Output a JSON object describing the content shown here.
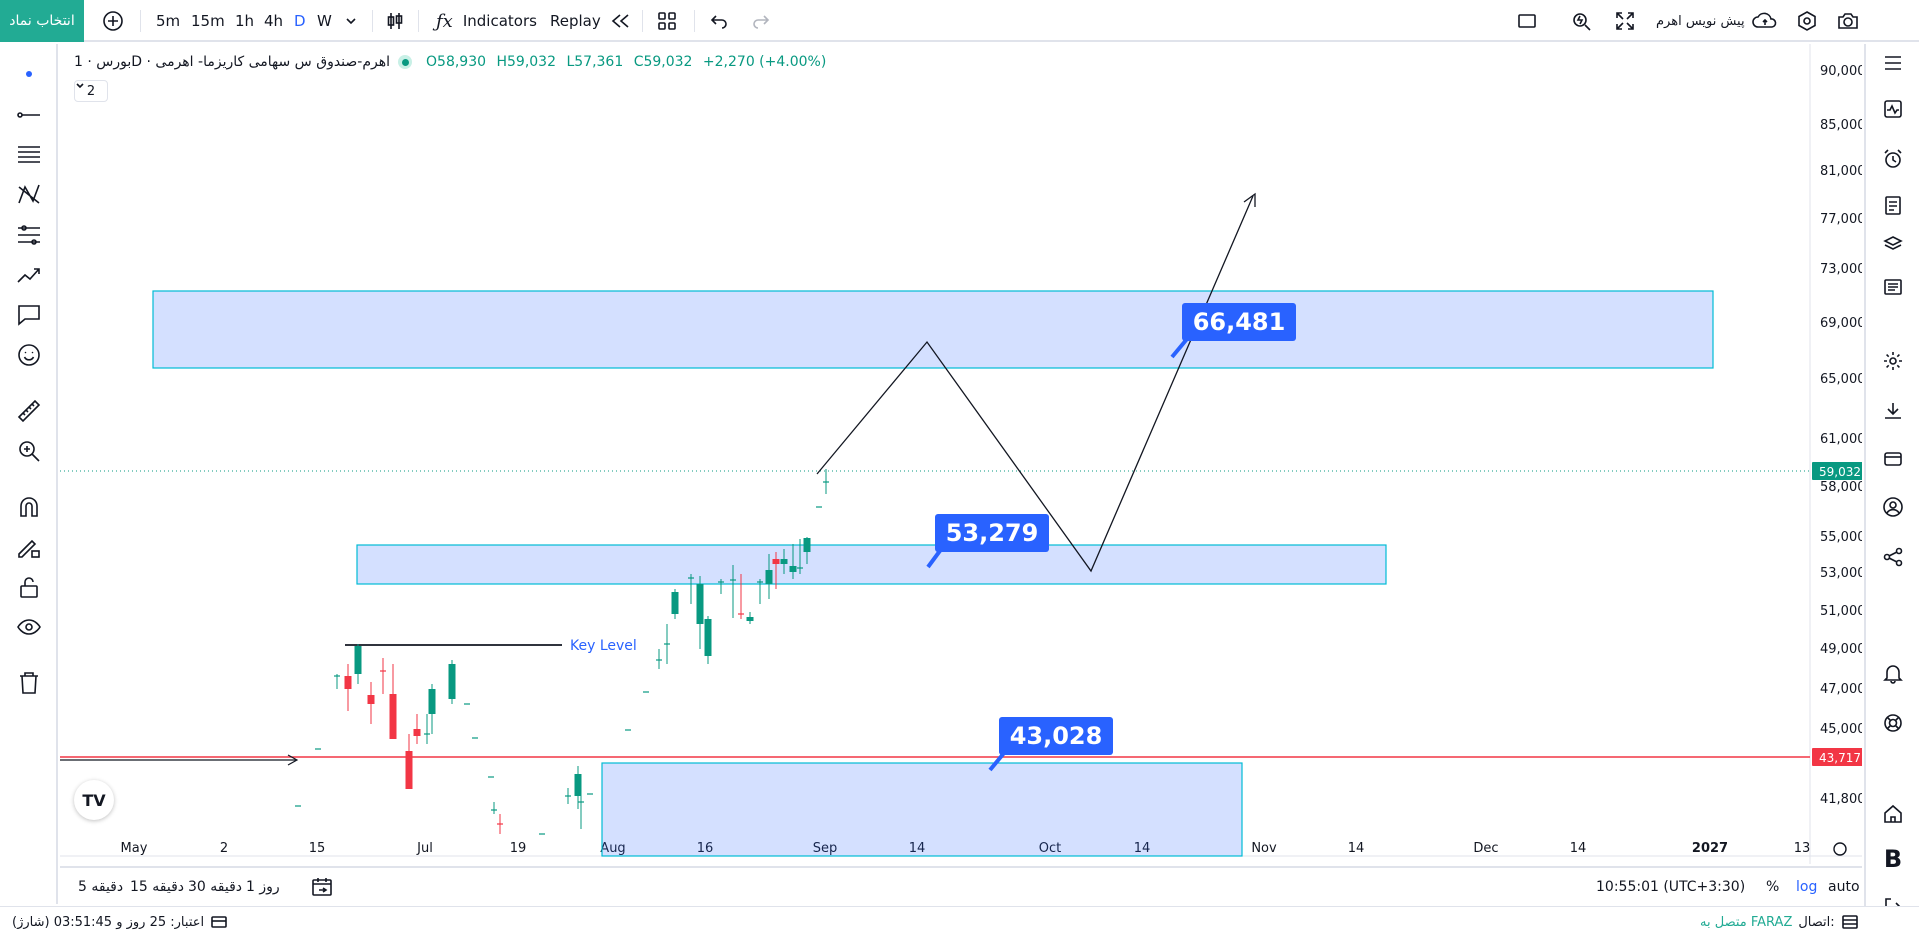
{
  "header": {
    "symbol_button": "انتخاب نماد",
    "intervals": [
      "5m",
      "15m",
      "1h",
      "4h",
      "D",
      "W"
    ],
    "active_interval": "D",
    "indicators_label": "Indicators",
    "replay_label": "Replay",
    "cloud_label": "پیش نویس اهرم"
  },
  "legend": {
    "symbol": "بورس · 1D · اهرم-صندوق س سهامی کاریزما- اهرمی",
    "open": "O58,930",
    "high": "H59,032",
    "low": "L57,361",
    "close": "C59,032",
    "change": "+2,270 (+4.00%)",
    "collapse_count": "2"
  },
  "price_axis": {
    "ticks": [
      "90,000",
      "85,000",
      "81,000",
      "77,000",
      "73,000",
      "69,000",
      "65,000",
      "61,000",
      "58,000",
      "55,000",
      "53,000",
      "51,000",
      "49,000",
      "47,000",
      "45,000",
      "41,800"
    ],
    "last_price_tag": "59,032",
    "red_line_tag": "43,717"
  },
  "time_axis": {
    "ticks": [
      "May",
      "2",
      "15",
      "Jul",
      "19",
      "Aug",
      "16",
      "Sep",
      "14",
      "Oct",
      "14",
      "Nov",
      "14",
      "Dec",
      "14",
      "2027",
      "13"
    ]
  },
  "annotations": {
    "key_level": "Key Level",
    "label_top": "66,481",
    "label_mid": "53,279",
    "label_low": "43,028"
  },
  "bottom": {
    "ranges": [
      "5 دقیقه",
      "15 دقیقه",
      "30 دقیقه",
      "1 روز"
    ],
    "clock": "10:55:01 (UTC+3:30)",
    "percent": "%",
    "log": "log",
    "auto": "auto"
  },
  "status": {
    "connection_label": "اتصال:",
    "connection_value": "متصل به FARAZ",
    "credit": "اعتبار: 25 روز و 03:51:45 (شارژ)"
  },
  "colors": {
    "accent": "#2962ff",
    "up": "#089981",
    "down": "#f23645",
    "symbol_button": "#22ab94"
  }
}
